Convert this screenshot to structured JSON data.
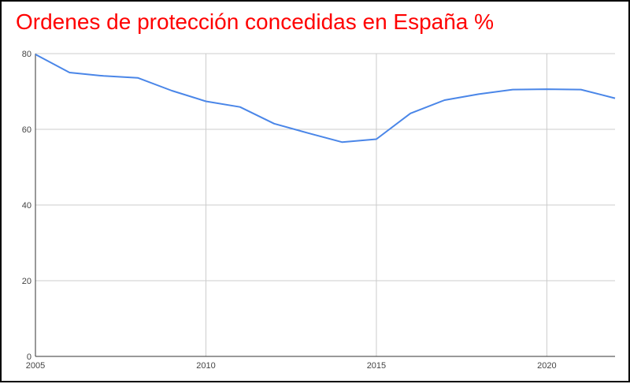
{
  "chart_data": {
    "type": "line",
    "title": "Ordenes de protección concedidas en España %",
    "xlabel": "",
    "ylabel": "",
    "xlim": [
      2005,
      2022
    ],
    "ylim": [
      0,
      80
    ],
    "grid": true,
    "colors": {
      "line": "#4a86e8",
      "title": "#ff0000",
      "grid": "#cccccc",
      "axis": "#333333"
    },
    "x_ticks": [
      2005,
      2010,
      2015,
      2020
    ],
    "x_tick_labels": [
      "2005",
      "2010",
      "2015",
      "2020"
    ],
    "y_ticks": [
      0,
      20,
      40,
      60,
      80
    ],
    "y_tick_labels": [
      "0",
      "20",
      "40",
      "60",
      "80"
    ],
    "series": [
      {
        "name": "Ordenes de protección concedidas",
        "x": [
          2005,
          2006,
          2007,
          2008,
          2009,
          2010,
          2011,
          2012,
          2013,
          2014,
          2015,
          2016,
          2017,
          2018,
          2019,
          2020,
          2021,
          2022
        ],
        "values": [
          79.8,
          75.0,
          74.1,
          73.6,
          70.2,
          67.4,
          65.9,
          61.5,
          59.0,
          56.6,
          57.4,
          64.2,
          67.7,
          69.3,
          70.5,
          70.6,
          70.5,
          68.2
        ]
      }
    ]
  }
}
